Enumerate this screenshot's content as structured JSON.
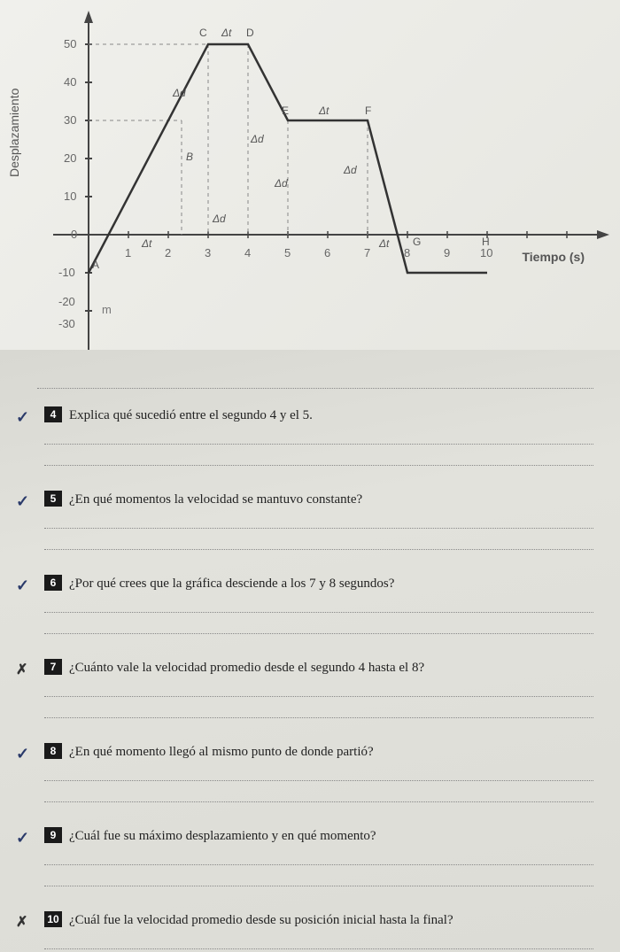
{
  "chart": {
    "type": "line",
    "ylabel": "Desplazamiento",
    "xlabel": "Tiempo (s)",
    "unit_label": "m",
    "background_color": "#ededea",
    "grid_color": "#999999",
    "axis_color": "#444444",
    "line_color": "#333333",
    "y_ticks": [
      -30,
      -20,
      -10,
      0,
      10,
      20,
      30,
      40,
      50
    ],
    "x_ticks": [
      1,
      2,
      3,
      4,
      5,
      6,
      7,
      8,
      9,
      10
    ],
    "ylim": [
      -35,
      55
    ],
    "xlim": [
      -0.5,
      14
    ],
    "points": [
      {
        "t": 0,
        "d": -10,
        "label": "A"
      },
      {
        "t": 3,
        "d": 50,
        "label": "C"
      },
      {
        "t": 4,
        "d": 50,
        "label": "D"
      },
      {
        "t": 5,
        "d": 30,
        "label": "E"
      },
      {
        "t": 7,
        "d": 30,
        "label": "F"
      },
      {
        "t": 8,
        "d": -10,
        "label": "G"
      },
      {
        "t": 10,
        "d": -10,
        "label": "H"
      }
    ],
    "delta_labels": [
      "Δd",
      "Δt",
      "Δt",
      "Δd",
      "Δd",
      "Δt",
      "Δd",
      "Δt",
      "Δd",
      "Δt"
    ],
    "line_width": 2,
    "label_fontsize": 14,
    "tick_fontsize": 13
  },
  "questions": [
    {
      "num": "4",
      "mark": "check",
      "text": "Explica qué sucedió entre el segundo 4 y el 5.",
      "lines": 2
    },
    {
      "num": "5",
      "mark": "check",
      "text": "¿En qué momentos la velocidad se mantuvo constante?",
      "lines": 2
    },
    {
      "num": "6",
      "mark": "check",
      "text": "¿Por qué crees que la gráfica desciende a los 7 y 8 segundos?",
      "lines": 2
    },
    {
      "num": "7",
      "mark": "cross",
      "text": "¿Cuánto vale la velocidad promedio desde el segundo 4 hasta el 8?",
      "lines": 2
    },
    {
      "num": "8",
      "mark": "check",
      "text": "¿En qué momento llegó al mismo punto de donde partió?",
      "lines": 2
    },
    {
      "num": "9",
      "mark": "check",
      "text": "¿Cuál fue su máximo desplazamiento y en qué momento?",
      "lines": 2
    },
    {
      "num": "10",
      "mark": "cross",
      "text": "¿Cuál fue la velocidad promedio desde su posición inicial hasta la final?",
      "lines": 1
    }
  ]
}
